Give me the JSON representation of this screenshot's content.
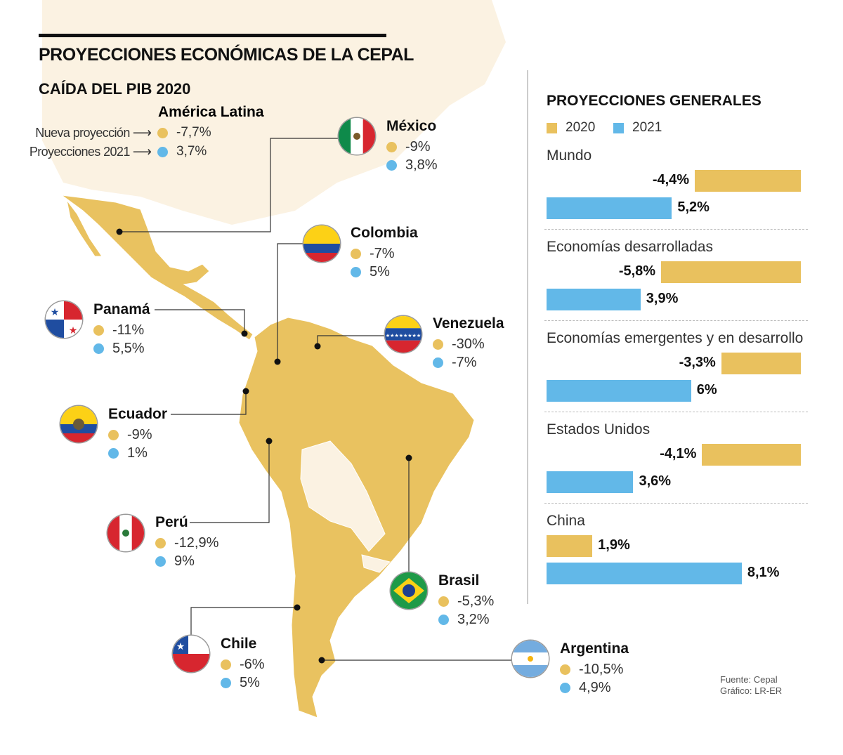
{
  "header": {
    "title": "PROYECCIONES ECONÓMICAS DE LA CEPAL",
    "subtitle": "CAÍDA DEL PIB 2020"
  },
  "colors": {
    "y2020": "#E9C15E",
    "y2021": "#62B8E8",
    "land": "#E9C260",
    "background_land": "#FBF2E2"
  },
  "latin_america": {
    "title": "América Latina",
    "rows": [
      {
        "label": "Nueva proyección",
        "value": "-7,7%"
      },
      {
        "label": "Proyecciones 2021",
        "value": "3,7%"
      }
    ]
  },
  "countries": [
    {
      "name": "México",
      "v2020": "-9%",
      "v2021": "3,8%",
      "flag": "mexico"
    },
    {
      "name": "Colombia",
      "v2020": "-7%",
      "v2021": "5%",
      "flag": "colombia"
    },
    {
      "name": "Panamá",
      "v2020": "-11%",
      "v2021": "5,5%",
      "flag": "panama"
    },
    {
      "name": "Venezuela",
      "v2020": "-30%",
      "v2021": "-7%",
      "flag": "venezuela"
    },
    {
      "name": "Ecuador",
      "v2020": "-9%",
      "v2021": "1%",
      "flag": "ecuador"
    },
    {
      "name": "Perú",
      "v2020": "-12,9%",
      "v2021": "9%",
      "flag": "peru"
    },
    {
      "name": "Brasil",
      "v2020": "-5,3%",
      "v2021": "3,2%",
      "flag": "brasil"
    },
    {
      "name": "Chile",
      "v2020": "-6%",
      "v2021": "5%",
      "flag": "chile"
    },
    {
      "name": "Argentina",
      "v2020": "-10,5%",
      "v2021": "4,9%",
      "flag": "argentina"
    }
  ],
  "chart_data": {
    "type": "bar",
    "title": "PROYECCIONES GENERALES",
    "categories": [
      "Mundo",
      "Economías desarrolladas",
      "Economías emergentes y en desarrollo",
      "Estados Unidos",
      "China"
    ],
    "series": [
      {
        "name": "2020",
        "values": [
          -4.4,
          -5.8,
          -3.3,
          -4.1,
          1.9
        ],
        "labels": [
          "-4,4%",
          "-5,8%",
          "-3,3%",
          "-4,1%",
          "1,9%"
        ]
      },
      {
        "name": "2021",
        "values": [
          5.2,
          3.9,
          6.0,
          3.6,
          8.1
        ],
        "labels": [
          "5,2%",
          "3,9%",
          "6%",
          "3,6%",
          "8,1%"
        ]
      }
    ]
  },
  "footer": {
    "source": "Fuente: Cepal",
    "credit": "Gráfico: LR-ER"
  }
}
